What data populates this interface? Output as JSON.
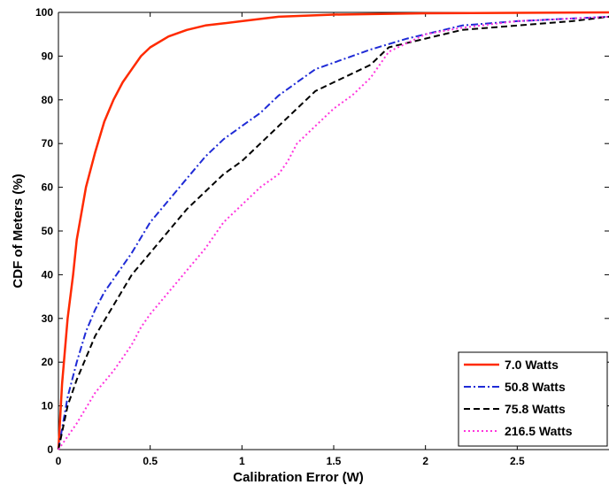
{
  "chart_data": {
    "type": "line",
    "title": "",
    "xlabel": "Calibration Error (W)",
    "ylabel": "CDF of Meters (%)",
    "xlim": [
      0,
      3
    ],
    "ylim": [
      0,
      100
    ],
    "x_ticks": [
      "0",
      "0.5",
      "1",
      "1.5",
      "2",
      "2.5"
    ],
    "y_ticks": [
      "0",
      "10",
      "20",
      "30",
      "40",
      "50",
      "60",
      "70",
      "80",
      "90",
      "100"
    ],
    "grid": false,
    "legend_position": "bottom-right",
    "series": [
      {
        "name": "7.0 Watts",
        "color": "#ff2a00",
        "dash": "solid",
        "x": [
          0,
          0.02,
          0.05,
          0.08,
          0.1,
          0.15,
          0.2,
          0.25,
          0.3,
          0.35,
          0.4,
          0.45,
          0.5,
          0.6,
          0.7,
          0.8,
          0.9,
          1.0,
          1.2,
          1.5,
          2.0,
          2.5,
          3.0
        ],
        "y": [
          0,
          15,
          30,
          40,
          48,
          60,
          68,
          75,
          80,
          84,
          87,
          90,
          92,
          94.5,
          96,
          97,
          97.5,
          98,
          99,
          99.5,
          99.8,
          99.9,
          100
        ]
      },
      {
        "name": "50.8 Watts",
        "color": "#1f2bd6",
        "dash": "dashdot",
        "x": [
          0,
          0.05,
          0.1,
          0.15,
          0.2,
          0.25,
          0.3,
          0.4,
          0.5,
          0.6,
          0.7,
          0.8,
          0.9,
          1.0,
          1.1,
          1.2,
          1.3,
          1.4,
          1.5,
          1.7,
          1.9,
          2.0,
          2.2,
          2.5,
          3.0
        ],
        "y": [
          0,
          12,
          20,
          27,
          32,
          36,
          39,
          45,
          52,
          57,
          62,
          67,
          71,
          74,
          77,
          81,
          84,
          87,
          88.5,
          91.5,
          94,
          95,
          97,
          98,
          99
        ]
      },
      {
        "name": "75.8 Watts",
        "color": "#000000",
        "dash": "dashed",
        "x": [
          0,
          0.05,
          0.1,
          0.15,
          0.2,
          0.3,
          0.4,
          0.5,
          0.6,
          0.7,
          0.8,
          0.9,
          1.0,
          1.1,
          1.2,
          1.3,
          1.4,
          1.5,
          1.6,
          1.7,
          1.8,
          2.0,
          2.2,
          2.5,
          2.8,
          3.0
        ],
        "y": [
          0,
          10,
          16,
          21,
          26,
          33,
          40,
          45,
          50,
          55,
          59,
          63,
          66,
          70,
          74,
          78,
          82,
          84,
          86,
          88,
          92,
          94,
          96,
          97,
          98,
          99
        ]
      },
      {
        "name": "216.5 Watts",
        "color": "#ff33dd",
        "dash": "dotted",
        "x": [
          0,
          0.1,
          0.2,
          0.3,
          0.35,
          0.4,
          0.45,
          0.5,
          0.6,
          0.7,
          0.8,
          0.9,
          1.0,
          1.1,
          1.2,
          1.25,
          1.3,
          1.4,
          1.5,
          1.6,
          1.7,
          1.8,
          2.0,
          2.2,
          2.5,
          3.0
        ],
        "y": [
          0,
          6,
          13,
          18,
          21,
          24,
          28,
          31,
          36,
          41,
          46,
          52,
          56,
          60,
          63,
          66,
          70,
          74,
          78,
          81,
          85,
          91,
          95,
          96.5,
          98,
          99
        ]
      }
    ]
  }
}
